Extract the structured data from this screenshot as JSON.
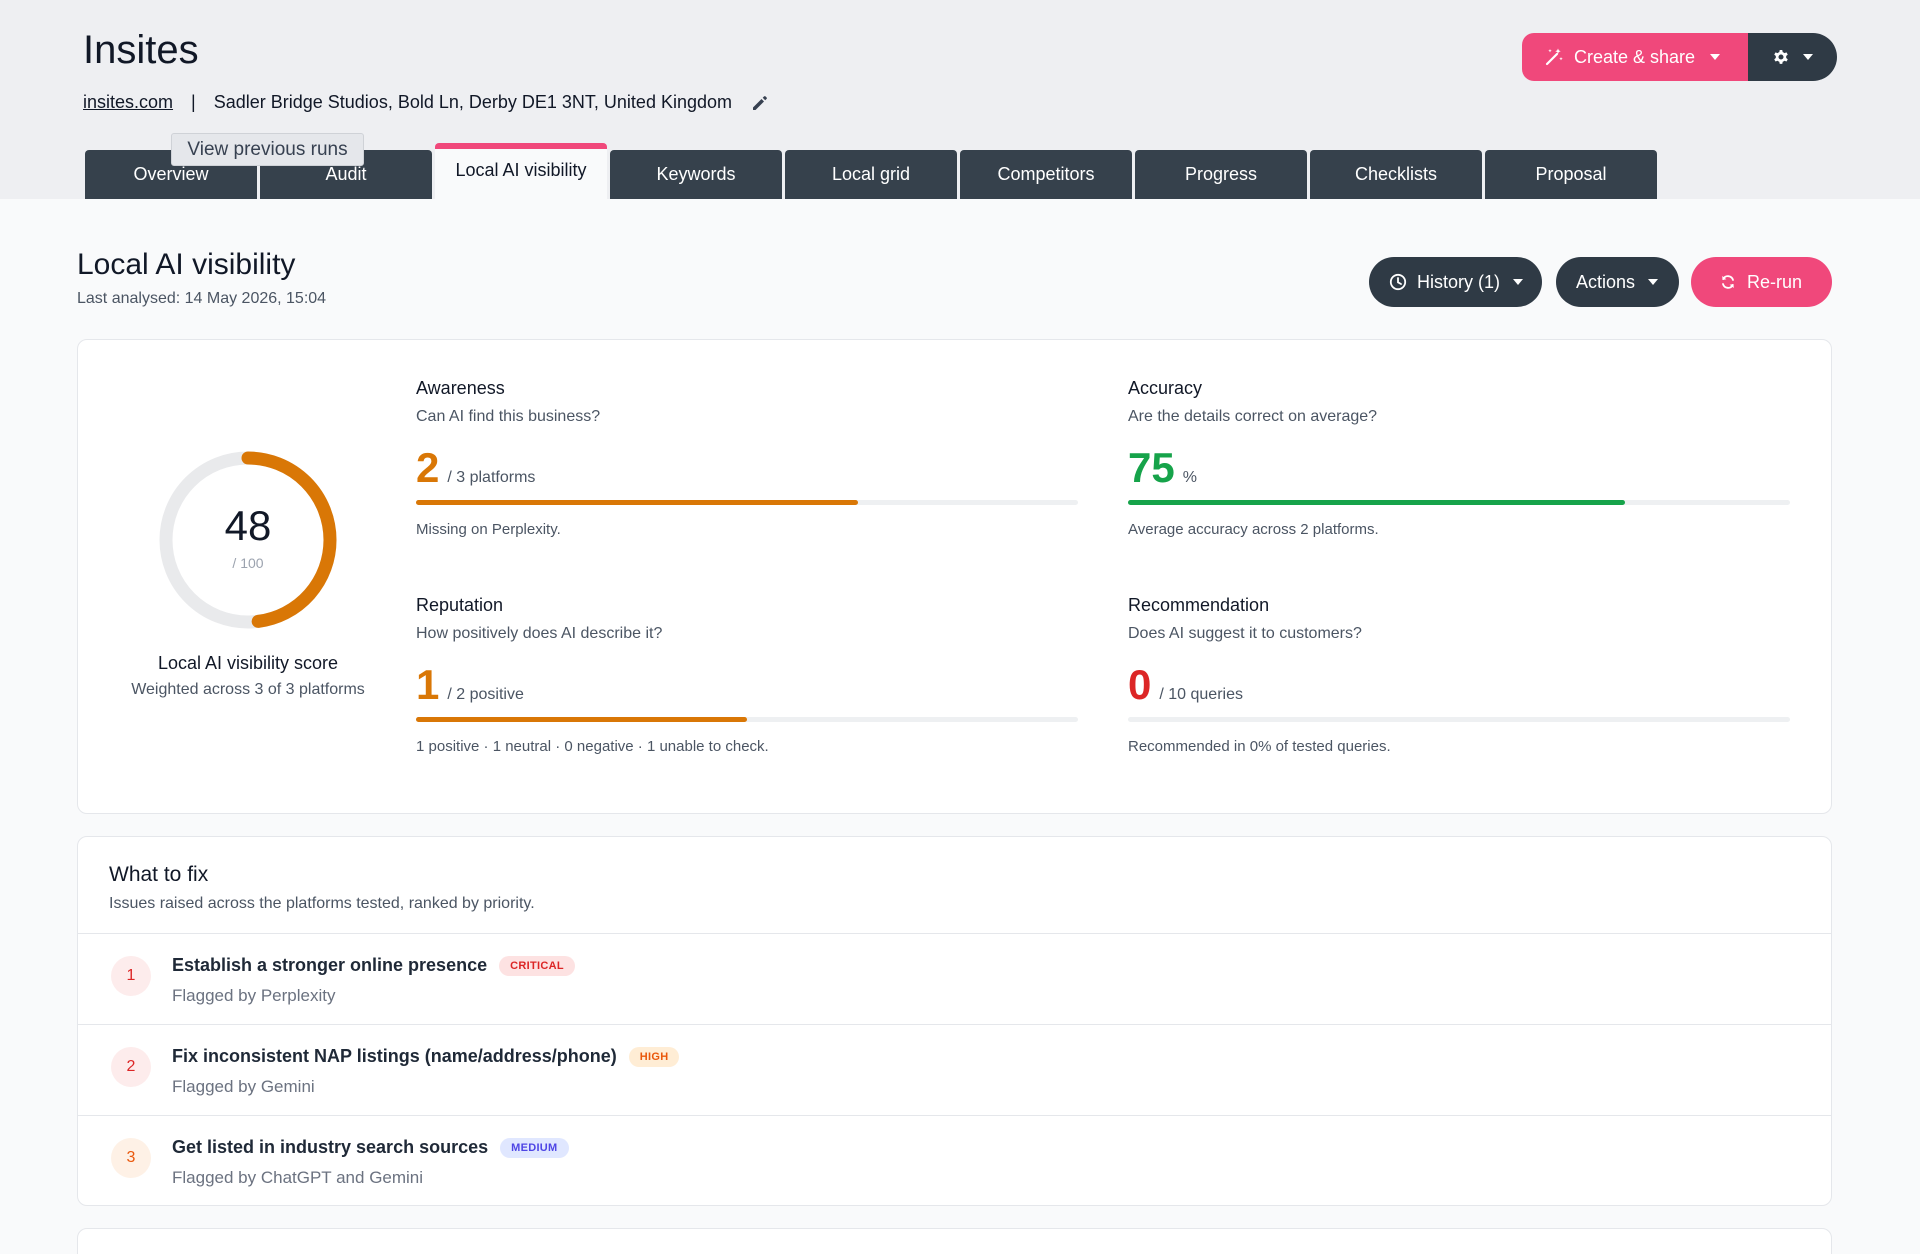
{
  "header": {
    "title": "Insites",
    "site_link": "insites.com",
    "separator": "|",
    "address": "Sadler Bridge Studios, Bold Ln, Derby DE1 3NT, United Kingdom",
    "create_share_label": "Create & share"
  },
  "tooltip": "View previous runs",
  "tabs": [
    {
      "label": "Overview"
    },
    {
      "label": "Audit"
    },
    {
      "label": "Local AI visibility",
      "active": true
    },
    {
      "label": "Keywords"
    },
    {
      "label": "Local grid"
    },
    {
      "label": "Competitors"
    },
    {
      "label": "Progress"
    },
    {
      "label": "Checklists"
    },
    {
      "label": "Proposal"
    }
  ],
  "page": {
    "title": "Local AI visibility",
    "last_analysed": "Last analysed: 14 May 2026, 15:04",
    "history_label": "History (1)",
    "actions_label": "Actions",
    "rerun_label": "Re-run"
  },
  "score": {
    "value": "48",
    "max": "/ 100",
    "fraction": 0.48,
    "label": "Local AI visibility score",
    "sub": "Weighted across 3 of 3 platforms",
    "color": "#d97706"
  },
  "metrics": {
    "awareness": {
      "title": "Awareness",
      "question": "Can AI find this business?",
      "value": "2",
      "unit": "/ 3 platforms",
      "fraction": 0.667,
      "note": "Missing on Perplexity.",
      "color": "#d97706"
    },
    "accuracy": {
      "title": "Accuracy",
      "question": "Are the details correct on average?",
      "value": "75",
      "unit": "%",
      "fraction": 0.75,
      "note": "Average accuracy across 2 platforms.",
      "color": "#16a34a"
    },
    "reputation": {
      "title": "Reputation",
      "question": "How positively does AI describe it?",
      "value": "1",
      "unit": "/ 2 positive",
      "fraction": 0.5,
      "note": "1 positive · 1 neutral · 0 negative · 1 unable to check.",
      "color": "#d97706"
    },
    "recommendation": {
      "title": "Recommendation",
      "question": "Does AI suggest it to customers?",
      "value": "0",
      "unit": "/ 10 queries",
      "fraction": 0,
      "note": "Recommended in 0% of tested queries.",
      "color": "#dc2626"
    }
  },
  "fix": {
    "title": "What to fix",
    "subtitle": "Issues raised across the platforms tested, ranked by priority.",
    "items": [
      {
        "num": "1",
        "name": "Establish a stronger online presence",
        "badge": "CRITICAL",
        "by": "Flagged by Perplexity"
      },
      {
        "num": "2",
        "name": "Fix inconsistent NAP listings (name/address/phone)",
        "badge": "HIGH",
        "by": "Flagged by Gemini"
      },
      {
        "num": "3",
        "name": "Get listed in industry search sources",
        "badge": "MEDIUM",
        "by": "Flagged by ChatGPT and Gemini"
      }
    ]
  },
  "colors": {
    "accent": "#f0487b",
    "dark": "#2f3a45",
    "critical": "#dc2626",
    "high": "#ea580c",
    "medium": "#4f46e5"
  }
}
